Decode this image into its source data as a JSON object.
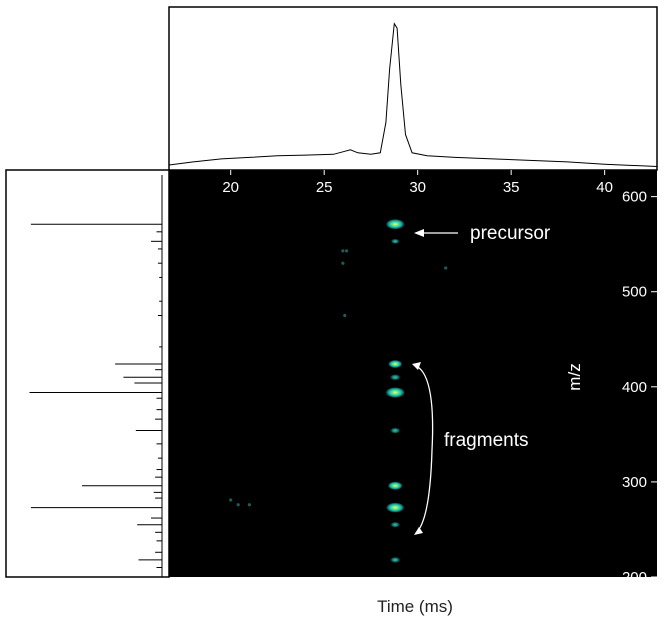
{
  "chart_data": {
    "type": "heatmap",
    "xlabel": "Time (ms)",
    "ylabel": "m/z",
    "xlim": [
      16.7,
      42.8
    ],
    "ylim": [
      200,
      628
    ],
    "xticks": [
      20,
      25,
      30,
      35,
      40
    ],
    "yticks": [
      200,
      300,
      400,
      500,
      600
    ],
    "spot_time": 28.8,
    "spots": [
      {
        "mz": 571,
        "intensity": 0.95
      },
      {
        "mz": 553,
        "intensity": 0.15
      },
      {
        "mz": 424,
        "intensity": 0.55
      },
      {
        "mz": 410,
        "intensity": 0.35
      },
      {
        "mz": 394,
        "intensity": 1.0
      },
      {
        "mz": 354,
        "intensity": 0.3
      },
      {
        "mz": 296,
        "intensity": 0.6
      },
      {
        "mz": 273,
        "intensity": 0.9
      },
      {
        "mz": 255,
        "intensity": 0.25
      },
      {
        "mz": 218,
        "intensity": 0.3
      }
    ],
    "faint_spots": [
      {
        "time": 26.2,
        "mz": 543
      },
      {
        "time": 26.0,
        "mz": 543
      },
      {
        "time": 26.0,
        "mz": 530
      },
      {
        "time": 26.1,
        "mz": 475
      },
      {
        "time": 31.5,
        "mz": 525
      },
      {
        "time": 20.0,
        "mz": 281
      },
      {
        "time": 20.4,
        "mz": 276
      },
      {
        "time": 21.0,
        "mz": 276
      }
    ],
    "time_profile": [
      [
        16.7,
        0.02
      ],
      [
        18.0,
        0.04
      ],
      [
        19.5,
        0.06
      ],
      [
        21.0,
        0.07
      ],
      [
        22.5,
        0.08
      ],
      [
        24.0,
        0.085
      ],
      [
        25.5,
        0.09
      ],
      [
        26.1,
        0.11
      ],
      [
        26.4,
        0.12
      ],
      [
        26.8,
        0.1
      ],
      [
        27.5,
        0.09
      ],
      [
        28.0,
        0.1
      ],
      [
        28.3,
        0.3
      ],
      [
        28.5,
        0.65
      ],
      [
        28.75,
        0.95
      ],
      [
        28.9,
        0.92
      ],
      [
        29.1,
        0.55
      ],
      [
        29.35,
        0.22
      ],
      [
        29.7,
        0.1
      ],
      [
        30.5,
        0.08
      ],
      [
        32.0,
        0.07
      ],
      [
        34.0,
        0.06
      ],
      [
        36.0,
        0.05
      ],
      [
        38.0,
        0.04
      ],
      [
        40.0,
        0.025
      ],
      [
        42.8,
        0.01
      ]
    ],
    "mass_spectrum": [
      [
        571,
        0.95
      ],
      [
        563,
        0.04
      ],
      [
        553,
        0.08
      ],
      [
        545,
        0.03
      ],
      [
        530,
        0.03
      ],
      [
        515,
        0.02
      ],
      [
        490,
        0.02
      ],
      [
        475,
        0.03
      ],
      [
        442,
        0.02
      ],
      [
        424,
        0.34
      ],
      [
        418,
        0.05
      ],
      [
        410,
        0.28
      ],
      [
        404,
        0.2
      ],
      [
        394,
        0.96
      ],
      [
        388,
        0.04
      ],
      [
        376,
        0.04
      ],
      [
        366,
        0.05
      ],
      [
        354,
        0.19
      ],
      [
        340,
        0.04
      ],
      [
        325,
        0.03
      ],
      [
        313,
        0.04
      ],
      [
        305,
        0.05
      ],
      [
        296,
        0.58
      ],
      [
        289,
        0.06
      ],
      [
        283,
        0.05
      ],
      [
        273,
        0.95
      ],
      [
        262,
        0.08
      ],
      [
        255,
        0.18
      ],
      [
        247,
        0.05
      ],
      [
        238,
        0.04
      ],
      [
        226,
        0.05
      ],
      [
        218,
        0.17
      ],
      [
        210,
        0.04
      ]
    ]
  },
  "annotations": {
    "precursor": "precursor",
    "fragments": "fragments"
  },
  "colors": {
    "heatmap_background": "#000000",
    "spot_outer": "#0b4e4a",
    "spot_mid": "#19c5b8",
    "spot_core": "#f2ff4a",
    "axis_text": "#ffffff",
    "line": "#000000"
  }
}
